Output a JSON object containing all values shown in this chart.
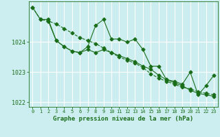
{
  "bg_color": "#cdeef0",
  "grid_color": "#ffffff",
  "line_color": "#1a6e1a",
  "marker_color": "#1a6e1a",
  "xlabel": "Graphe pression niveau de la mer (hPa)",
  "xlabel_color": "#1a6e1a",
  "tick_color": "#1a6e1a",
  "ylim": [
    1021.85,
    1025.35
  ],
  "xlim": [
    -0.5,
    23.5
  ],
  "yticks": [
    1022,
    1023,
    1024
  ],
  "xticks": [
    0,
    1,
    2,
    3,
    4,
    5,
    6,
    7,
    8,
    9,
    10,
    11,
    12,
    13,
    14,
    15,
    16,
    17,
    18,
    19,
    20,
    21,
    22,
    23
  ],
  "series1_x": [
    0,
    1,
    2,
    3,
    4,
    5,
    6,
    7,
    8,
    9,
    10,
    11,
    12,
    13,
    14,
    15,
    16,
    17,
    18,
    19,
    20,
    21,
    22,
    23
  ],
  "series1_y": [
    1025.15,
    1024.75,
    1024.7,
    1024.6,
    1024.45,
    1024.3,
    1024.15,
    1024.05,
    1023.95,
    1023.8,
    1023.65,
    1023.5,
    1023.4,
    1023.3,
    1023.15,
    1022.95,
    1022.8,
    1022.7,
    1022.6,
    1022.5,
    1022.45,
    1022.35,
    1022.3,
    1022.25
  ],
  "series2_x": [
    0,
    1,
    2,
    3,
    4,
    5,
    6,
    7,
    8,
    9,
    10,
    11,
    12,
    13,
    14,
    15,
    16,
    17,
    18,
    19,
    20,
    21,
    22,
    23
  ],
  "series2_y": [
    1025.15,
    1024.75,
    1024.75,
    1024.05,
    1023.85,
    1023.7,
    1023.65,
    1023.85,
    1024.55,
    1024.75,
    1024.1,
    1024.1,
    1024.0,
    1024.1,
    1023.75,
    1023.2,
    1023.2,
    1022.75,
    1022.7,
    1022.6,
    1023.0,
    1022.25,
    1022.55,
    1022.9
  ],
  "series3_x": [
    2,
    3,
    4,
    5,
    6,
    7,
    8,
    9,
    10,
    11,
    12,
    13,
    14,
    15,
    16,
    17,
    18,
    19,
    20,
    21,
    22,
    23
  ],
  "series3_y": [
    1024.7,
    1024.05,
    1023.85,
    1023.7,
    1023.65,
    1023.75,
    1023.65,
    1023.75,
    1023.65,
    1023.55,
    1023.45,
    1023.35,
    1023.2,
    1023.1,
    1022.9,
    1022.75,
    1022.65,
    1022.55,
    1022.4,
    1022.3,
    1022.25,
    1022.2
  ]
}
